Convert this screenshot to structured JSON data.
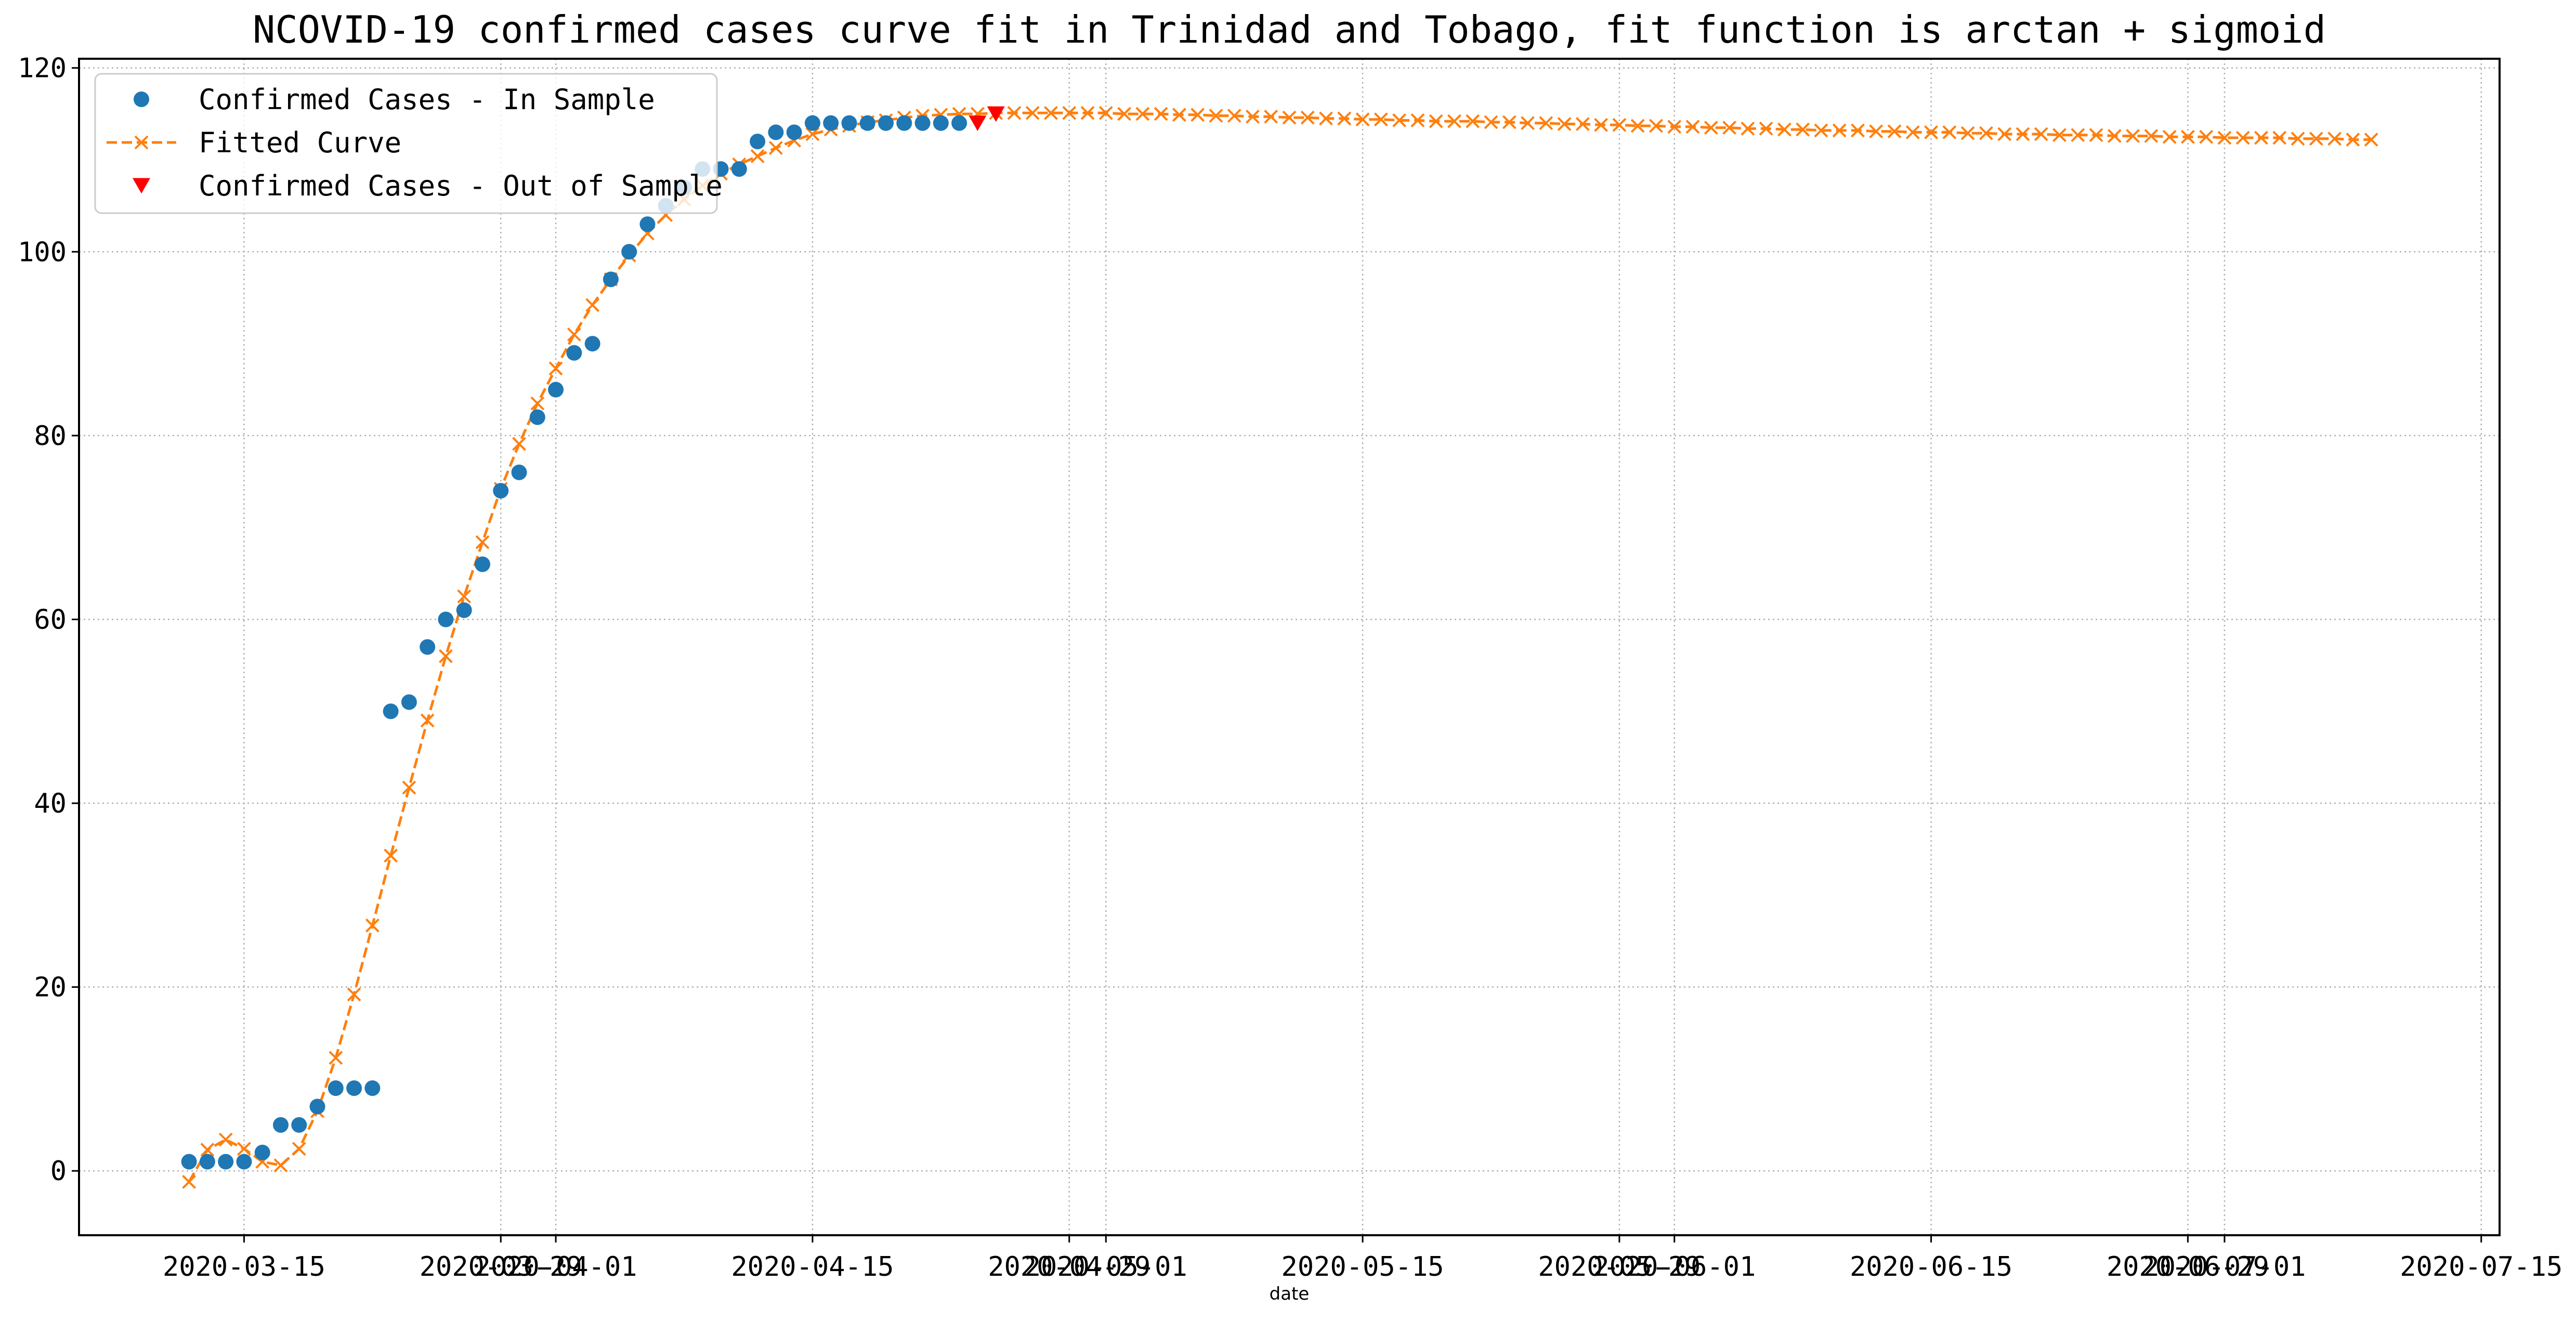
{
  "chart_data": {
    "type": "line",
    "title": "NCOVID-19 confirmed cases curve fit in Trinidad and Tobago, fit function is arctan + sigmoid",
    "xlabel": "date",
    "ylabel": "",
    "xlim": [
      "2020-03-06",
      "2020-07-16"
    ],
    "ylim": [
      -7,
      121
    ],
    "grid": true,
    "legend_position": "upper-left",
    "x_ticks": [
      "2020-03-15",
      "2020-04-01",
      "2020-04-15",
      "2020-05-01",
      "2020-05-15",
      "2020-06-01",
      "2020-06-15",
      "2020-07-01",
      "2020-07-15"
    ],
    "x_tick_dates": [
      "2020-03-15",
      "2020-03-29",
      "2020-04-01",
      "2020-04-15",
      "2020-04-29",
      "2020-05-01",
      "2020-05-15",
      "2020-05-29",
      "2020-06-01",
      "2020-06-15",
      "2020-06-29",
      "2020-07-01",
      "2020-07-15"
    ],
    "x_tick_labels": [
      "2020-03-15",
      "2020-03-29",
      "2020-04-01",
      "2020-04-15",
      "2020-04-29",
      "2020-05-01",
      "2020-05-15",
      "2020-05-29",
      "2020-06-01",
      "2020-06-15",
      "2020-06-29",
      "2020-07-01",
      "2020-07-15"
    ],
    "y_ticks": [
      0,
      20,
      40,
      60,
      80,
      100,
      120
    ],
    "y_tick_labels": [
      "0",
      "20",
      "40",
      "60",
      "80",
      "100",
      "120"
    ],
    "series": [
      {
        "name": "Confirmed Cases - In Sample",
        "style": "circle-markers",
        "color": "#1f77b4",
        "x": [
          "2020-03-12",
          "2020-03-13",
          "2020-03-14",
          "2020-03-15",
          "2020-03-16",
          "2020-03-17",
          "2020-03-18",
          "2020-03-19",
          "2020-03-20",
          "2020-03-21",
          "2020-03-22",
          "2020-03-23",
          "2020-03-24",
          "2020-03-25",
          "2020-03-26",
          "2020-03-27",
          "2020-03-28",
          "2020-03-29",
          "2020-03-30",
          "2020-03-31",
          "2020-04-01",
          "2020-04-02",
          "2020-04-03",
          "2020-04-04",
          "2020-04-05",
          "2020-04-06",
          "2020-04-07",
          "2020-04-08",
          "2020-04-09",
          "2020-04-10",
          "2020-04-11",
          "2020-04-12",
          "2020-04-13",
          "2020-04-14",
          "2020-04-15",
          "2020-04-16",
          "2020-04-17",
          "2020-04-18",
          "2020-04-19",
          "2020-04-20",
          "2020-04-21",
          "2020-04-22",
          "2020-04-23"
        ],
        "y": [
          1,
          1,
          1,
          1,
          2,
          5,
          5,
          7,
          9,
          9,
          9,
          50,
          51,
          57,
          60,
          61,
          66,
          74,
          76,
          82,
          85,
          89,
          90,
          97,
          100,
          103,
          105,
          107,
          109,
          109,
          109,
          112,
          113,
          113,
          114,
          114,
          114,
          114,
          114,
          114,
          114,
          114,
          114
        ]
      },
      {
        "name": "Fitted Curve",
        "style": "dashed-line-x-markers",
        "color": "#ff7f0e",
        "x": [
          "2020-03-12",
          "2020-03-13",
          "2020-03-14",
          "2020-03-15",
          "2020-03-16",
          "2020-03-17",
          "2020-03-18",
          "2020-03-19",
          "2020-03-20",
          "2020-03-21",
          "2020-03-22",
          "2020-03-23",
          "2020-03-24",
          "2020-03-25",
          "2020-03-26",
          "2020-03-27",
          "2020-03-28",
          "2020-03-29",
          "2020-03-30",
          "2020-03-31",
          "2020-04-01",
          "2020-04-02",
          "2020-04-03",
          "2020-04-04",
          "2020-04-05",
          "2020-04-06",
          "2020-04-07",
          "2020-04-08",
          "2020-04-09",
          "2020-04-10",
          "2020-04-11",
          "2020-04-12",
          "2020-04-13",
          "2020-04-14",
          "2020-04-15",
          "2020-04-16",
          "2020-04-17",
          "2020-04-18",
          "2020-04-19",
          "2020-04-20",
          "2020-04-21",
          "2020-04-22",
          "2020-04-23",
          "2020-04-24",
          "2020-04-25",
          "2020-04-26",
          "2020-04-27",
          "2020-04-28",
          "2020-04-29",
          "2020-04-30",
          "2020-05-01",
          "2020-05-02",
          "2020-05-03",
          "2020-05-04",
          "2020-05-05",
          "2020-05-06",
          "2020-05-07",
          "2020-05-08",
          "2020-05-09",
          "2020-05-10",
          "2020-05-11",
          "2020-05-12",
          "2020-05-13",
          "2020-05-14",
          "2020-05-15",
          "2020-05-16",
          "2020-05-17",
          "2020-05-18",
          "2020-05-19",
          "2020-05-20",
          "2020-05-21",
          "2020-05-22",
          "2020-05-23",
          "2020-05-24",
          "2020-05-25",
          "2020-05-26",
          "2020-05-27",
          "2020-05-28",
          "2020-05-29",
          "2020-05-30",
          "2020-05-31",
          "2020-06-01",
          "2020-06-02",
          "2020-06-03",
          "2020-06-04",
          "2020-06-05",
          "2020-06-06",
          "2020-06-07",
          "2020-06-08",
          "2020-06-09",
          "2020-06-10",
          "2020-06-11",
          "2020-06-12",
          "2020-06-13",
          "2020-06-14",
          "2020-06-15",
          "2020-06-16",
          "2020-06-17",
          "2020-06-18",
          "2020-06-19",
          "2020-06-20",
          "2020-06-21",
          "2020-06-22",
          "2020-06-23",
          "2020-06-24",
          "2020-06-25",
          "2020-06-26",
          "2020-06-27",
          "2020-06-28",
          "2020-06-29",
          "2020-06-30",
          "2020-07-01",
          "2020-07-02",
          "2020-07-03",
          "2020-07-04",
          "2020-07-05",
          "2020-07-06",
          "2020-07-07",
          "2020-07-08",
          "2020-07-09"
        ],
        "y": [
          -1.2,
          2.3,
          3.4,
          2.4,
          1.0,
          0.6,
          2.4,
          6.5,
          12.3,
          19.2,
          26.7,
          34.3,
          41.7,
          49.0,
          56.0,
          62.5,
          68.4,
          74.2,
          79.1,
          83.5,
          87.3,
          91.0,
          94.2,
          97.0,
          99.6,
          102.0,
          104.0,
          105.7,
          107.2,
          108.5,
          109.5,
          110.4,
          111.3,
          112.1,
          112.8,
          113.3,
          113.7,
          114.1,
          114.3,
          114.6,
          114.8,
          114.9,
          115.0,
          115.0,
          115.1,
          115.1,
          115.1,
          115.1,
          115.1,
          115.1,
          115.1,
          115.0,
          115.0,
          115.0,
          114.9,
          114.9,
          114.8,
          114.8,
          114.7,
          114.7,
          114.6,
          114.6,
          114.5,
          114.5,
          114.4,
          114.4,
          114.3,
          114.3,
          114.2,
          114.2,
          114.2,
          114.1,
          114.1,
          114.0,
          114.0,
          113.9,
          113.9,
          113.8,
          113.8,
          113.7,
          113.7,
          113.6,
          113.6,
          113.5,
          113.5,
          113.4,
          113.4,
          113.3,
          113.3,
          113.2,
          113.2,
          113.2,
          113.1,
          113.1,
          113.0,
          113.0,
          113.0,
          112.9,
          112.9,
          112.8,
          112.8,
          112.8,
          112.7,
          112.7,
          112.7,
          112.6,
          112.6,
          112.6,
          112.5,
          112.5,
          112.5,
          112.4,
          112.4,
          112.4,
          112.4,
          112.3,
          112.3,
          112.3,
          112.2,
          112.2
        ]
      },
      {
        "name": "Confirmed Cases - Out of Sample",
        "style": "triangle-down-markers",
        "color": "#ff0000",
        "x": [
          "2020-04-24",
          "2020-04-25"
        ],
        "y": [
          114,
          115
        ]
      }
    ]
  }
}
